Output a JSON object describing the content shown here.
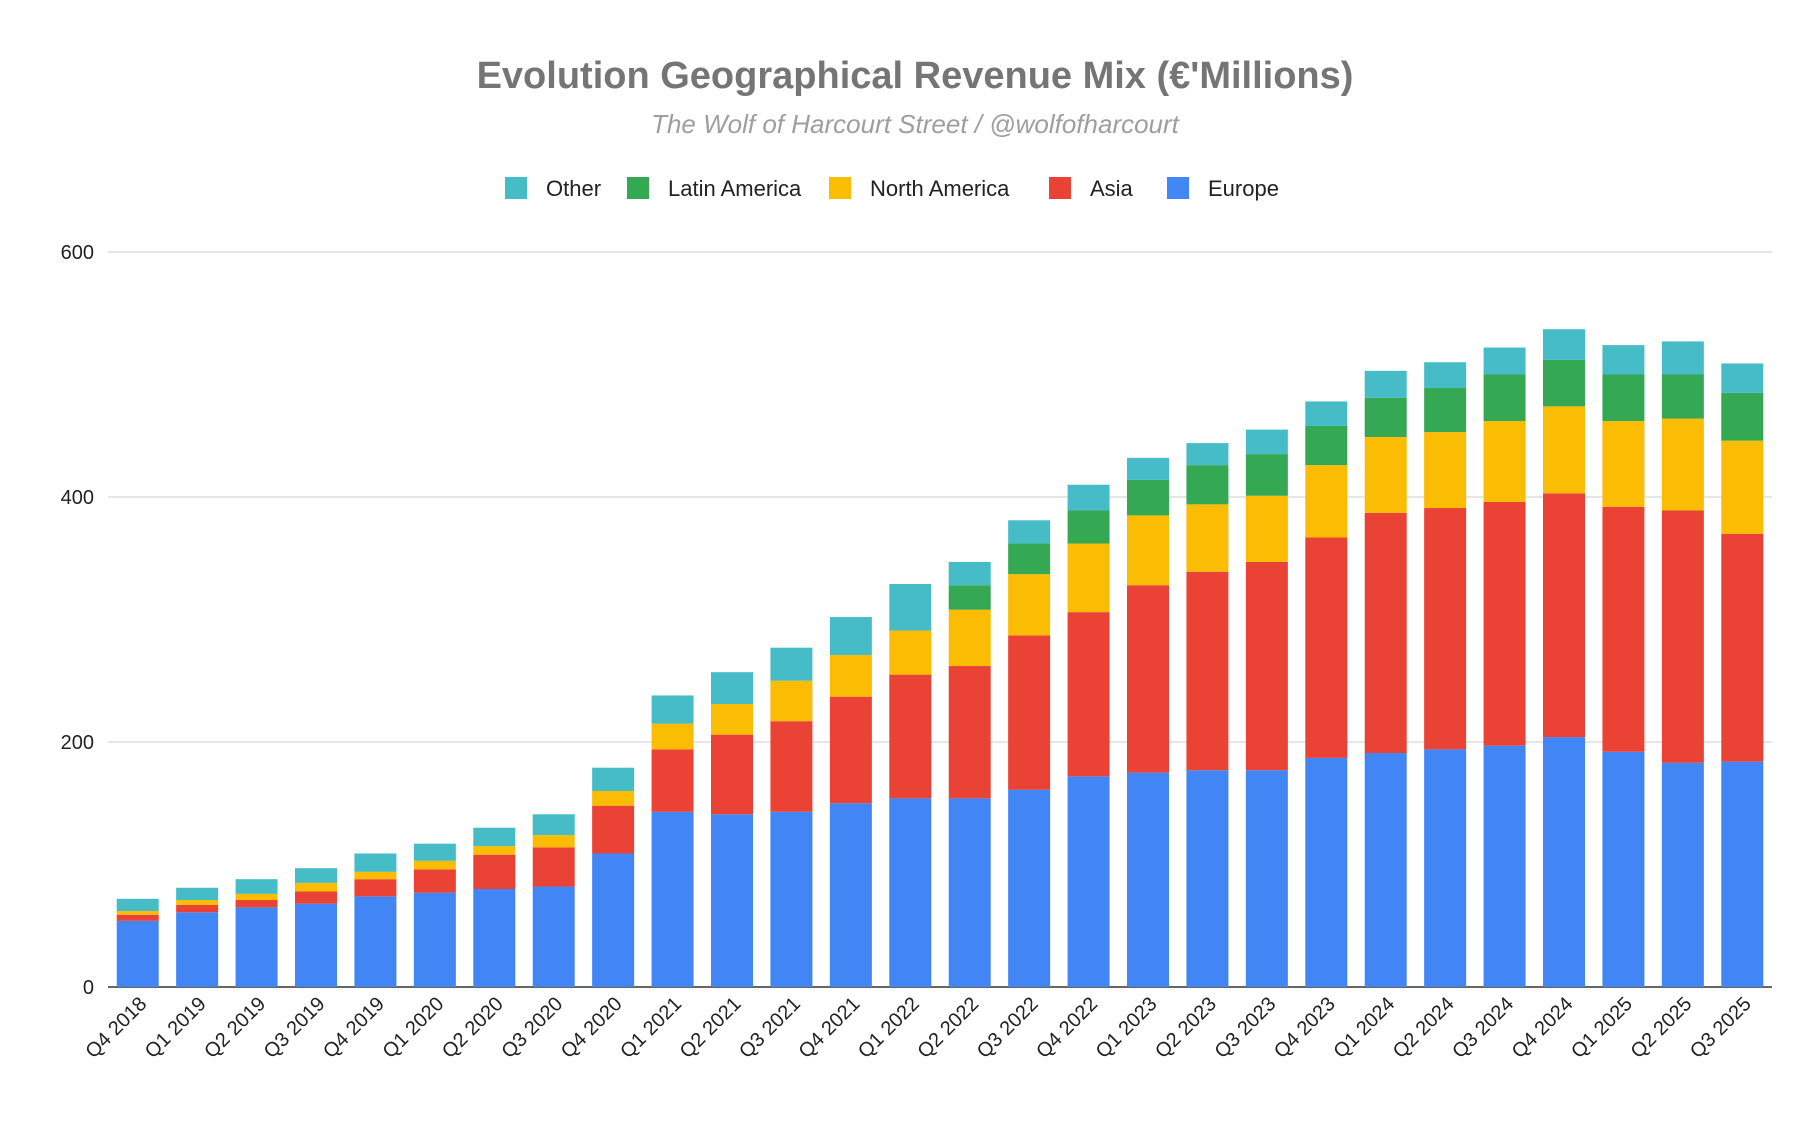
{
  "chart_data": {
    "type": "bar",
    "stacked": true,
    "title": "Evolution Geographical Revenue Mix (€'Millions)",
    "subtitle": "The Wolf of Harcourt Street / @wolfofharcourt",
    "xlabel": "",
    "ylabel": "",
    "ylim": [
      0,
      600
    ],
    "yticks": [
      0,
      200,
      400,
      600
    ],
    "grid": true,
    "legend_position": "top",
    "categories": [
      "Q4 2018",
      "Q1 2019",
      "Q2 2019",
      "Q3 2019",
      "Q4 2019",
      "Q1 2020",
      "Q2 2020",
      "Q3 2020",
      "Q4 2020",
      "Q1 2021",
      "Q2 2021",
      "Q3 2021",
      "Q4 2021",
      "Q1 2022",
      "Q2 2022",
      "Q3 2022",
      "Q4 2022",
      "Q1 2023",
      "Q2 2023",
      "Q3 2023",
      "Q4 2023",
      "Q1 2024",
      "Q2 2024",
      "Q3 2024",
      "Q4 2024",
      "Q1 2025",
      "Q2 2025",
      "Q3 2025"
    ],
    "series": [
      {
        "name": "Europe",
        "color": "#4285f4",
        "values": [
          54,
          61,
          65,
          68,
          74,
          77,
          80,
          82,
          109,
          143,
          141,
          143,
          150,
          154,
          154,
          161,
          172,
          175,
          177,
          177,
          187,
          191,
          194,
          197,
          204,
          192,
          183,
          184
        ]
      },
      {
        "name": "Asia",
        "color": "#ea4335",
        "values": [
          5,
          6,
          6,
          10,
          14,
          19,
          28,
          32,
          39,
          51,
          65,
          74,
          87,
          101,
          108,
          126,
          134,
          153,
          162,
          170,
          180,
          196,
          197,
          199,
          199,
          200,
          206,
          186
        ]
      },
      {
        "name": "North America",
        "color": "#fbbc04",
        "values": [
          3,
          4,
          5,
          7,
          6,
          7,
          7,
          10,
          12,
          21,
          25,
          33,
          34,
          36,
          46,
          50,
          56,
          57,
          55,
          54,
          59,
          62,
          62,
          66,
          71,
          70,
          75,
          76
        ]
      },
      {
        "name": "Latin America",
        "color": "#34a853",
        "values": [
          0,
          0,
          0,
          0,
          0,
          0,
          0,
          0,
          0,
          0,
          0,
          0,
          0,
          0,
          20,
          25,
          27,
          29,
          32,
          34,
          32,
          32,
          36,
          38,
          38,
          38,
          36,
          39
        ]
      },
      {
        "name": "Other",
        "color": "#46bdc6",
        "values": [
          10,
          10,
          12,
          12,
          15,
          14,
          15,
          17,
          19,
          23,
          26,
          27,
          31,
          38,
          19,
          19,
          21,
          18,
          18,
          20,
          20,
          22,
          21,
          22,
          25,
          24,
          27,
          24
        ]
      }
    ],
    "legend_order": [
      "Other",
      "Latin America",
      "North America",
      "Asia",
      "Europe"
    ]
  }
}
